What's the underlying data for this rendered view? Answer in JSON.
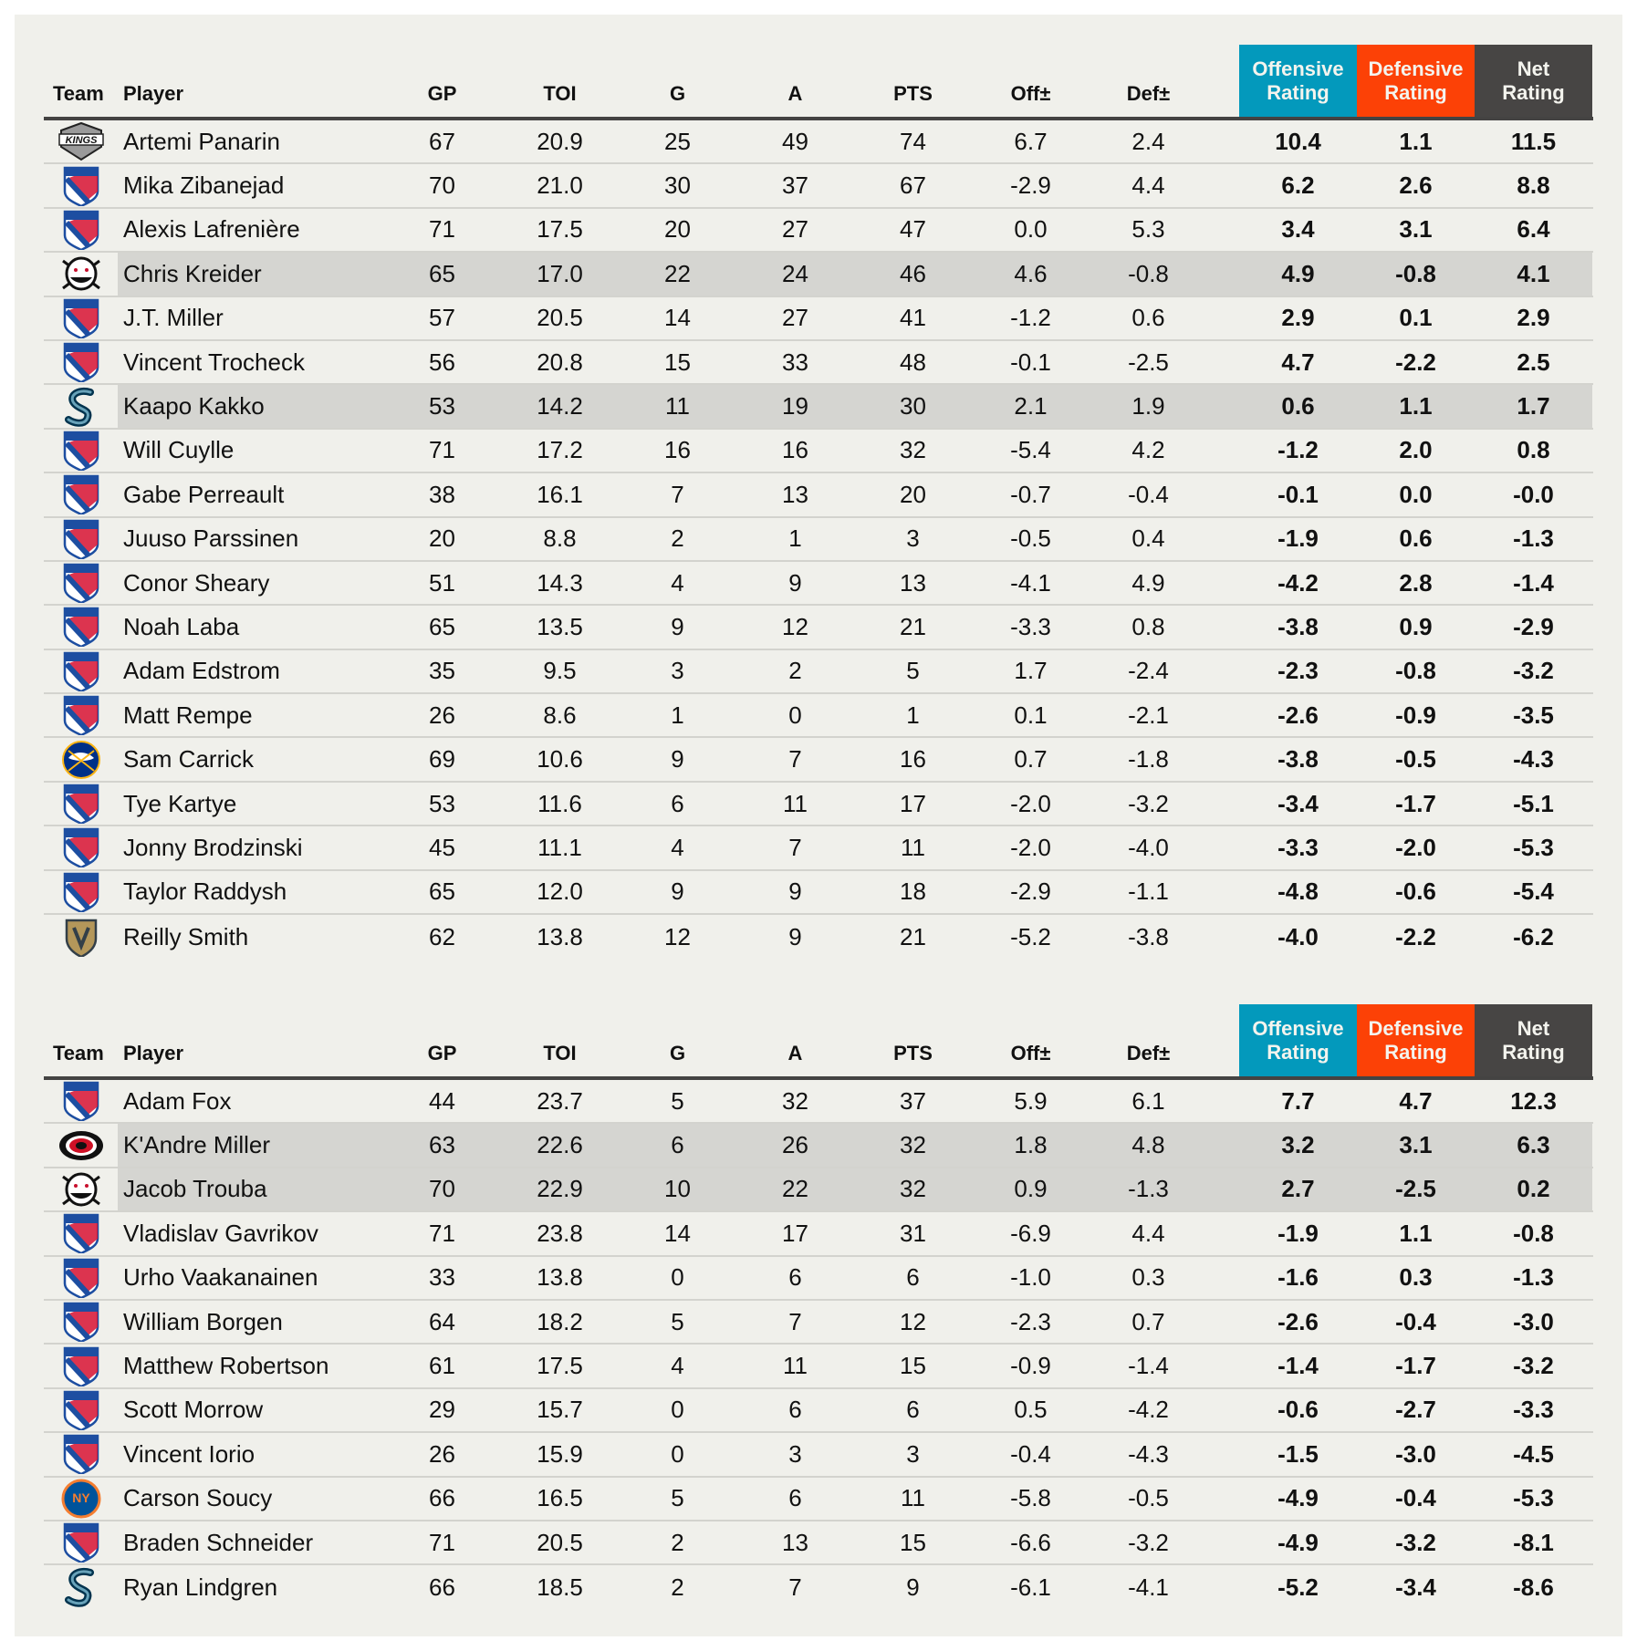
{
  "colors": {
    "offensive": "#0399bc",
    "defensive": "#fc4106",
    "net": "#474544",
    "highlight": "#d5d5d1",
    "background": "#f0f0eb"
  },
  "headers": {
    "team": "Team",
    "player": "Player",
    "gp": "GP",
    "toi": "TOI",
    "g": "G",
    "a": "A",
    "pts": "PTS",
    "off_pm": "Off±",
    "def_pm": "Def±",
    "off_rating": [
      "Offensive",
      "Rating"
    ],
    "def_rating": [
      "Defensive",
      "Rating"
    ],
    "net_rating": [
      "Net",
      "Rating"
    ]
  },
  "tables": [
    {
      "rows": [
        {
          "team": "kings",
          "player": "Artemi Panarin",
          "gp": "67",
          "toi": "20.9",
          "g": "25",
          "a": "49",
          "pts": "74",
          "off": "6.7",
          "def": "2.4",
          "offr": "10.4",
          "defr": "1.1",
          "net": "11.5",
          "highlight": false
        },
        {
          "team": "rangers",
          "player": "Mika Zibanejad",
          "gp": "70",
          "toi": "21.0",
          "g": "30",
          "a": "37",
          "pts": "67",
          "off": "-2.9",
          "def": "4.4",
          "offr": "6.2",
          "defr": "2.6",
          "net": "8.8",
          "highlight": false
        },
        {
          "team": "rangers",
          "player": "Alexis Lafrenière",
          "gp": "71",
          "toi": "17.5",
          "g": "20",
          "a": "27",
          "pts": "47",
          "off": "0.0",
          "def": "5.3",
          "offr": "3.4",
          "defr": "3.1",
          "net": "6.4",
          "highlight": false
        },
        {
          "team": "ducks",
          "player": "Chris Kreider",
          "gp": "65",
          "toi": "17.0",
          "g": "22",
          "a": "24",
          "pts": "46",
          "off": "4.6",
          "def": "-0.8",
          "offr": "4.9",
          "defr": "-0.8",
          "net": "4.1",
          "highlight": true
        },
        {
          "team": "rangers",
          "player": "J.T. Miller",
          "gp": "57",
          "toi": "20.5",
          "g": "14",
          "a": "27",
          "pts": "41",
          "off": "-1.2",
          "def": "0.6",
          "offr": "2.9",
          "defr": "0.1",
          "net": "2.9",
          "highlight": false
        },
        {
          "team": "rangers",
          "player": "Vincent Trocheck",
          "gp": "56",
          "toi": "20.8",
          "g": "15",
          "a": "33",
          "pts": "48",
          "off": "-0.1",
          "def": "-2.5",
          "offr": "4.7",
          "defr": "-2.2",
          "net": "2.5",
          "highlight": false
        },
        {
          "team": "kraken",
          "player": "Kaapo Kakko",
          "gp": "53",
          "toi": "14.2",
          "g": "11",
          "a": "19",
          "pts": "30",
          "off": "2.1",
          "def": "1.9",
          "offr": "0.6",
          "defr": "1.1",
          "net": "1.7",
          "highlight": true
        },
        {
          "team": "rangers",
          "player": "Will Cuylle",
          "gp": "71",
          "toi": "17.2",
          "g": "16",
          "a": "16",
          "pts": "32",
          "off": "-5.4",
          "def": "4.2",
          "offr": "-1.2",
          "defr": "2.0",
          "net": "0.8",
          "highlight": false
        },
        {
          "team": "rangers",
          "player": "Gabe Perreault",
          "gp": "38",
          "toi": "16.1",
          "g": "7",
          "a": "13",
          "pts": "20",
          "off": "-0.7",
          "def": "-0.4",
          "offr": "-0.1",
          "defr": "0.0",
          "net": "-0.0",
          "highlight": false
        },
        {
          "team": "rangers",
          "player": "Juuso Parssinen",
          "gp": "20",
          "toi": "8.8",
          "g": "2",
          "a": "1",
          "pts": "3",
          "off": "-0.5",
          "def": "0.4",
          "offr": "-1.9",
          "defr": "0.6",
          "net": "-1.3",
          "highlight": false
        },
        {
          "team": "rangers",
          "player": "Conor Sheary",
          "gp": "51",
          "toi": "14.3",
          "g": "4",
          "a": "9",
          "pts": "13",
          "off": "-4.1",
          "def": "4.9",
          "offr": "-4.2",
          "defr": "2.8",
          "net": "-1.4",
          "highlight": false
        },
        {
          "team": "rangers",
          "player": "Noah Laba",
          "gp": "65",
          "toi": "13.5",
          "g": "9",
          "a": "12",
          "pts": "21",
          "off": "-3.3",
          "def": "0.8",
          "offr": "-3.8",
          "defr": "0.9",
          "net": "-2.9",
          "highlight": false
        },
        {
          "team": "rangers",
          "player": "Adam Edstrom",
          "gp": "35",
          "toi": "9.5",
          "g": "3",
          "a": "2",
          "pts": "5",
          "off": "1.7",
          "def": "-2.4",
          "offr": "-2.3",
          "defr": "-0.8",
          "net": "-3.2",
          "highlight": false
        },
        {
          "team": "rangers",
          "player": "Matt Rempe",
          "gp": "26",
          "toi": "8.6",
          "g": "1",
          "a": "0",
          "pts": "1",
          "off": "0.1",
          "def": "-2.1",
          "offr": "-2.6",
          "defr": "-0.9",
          "net": "-3.5",
          "highlight": false
        },
        {
          "team": "sabres",
          "player": "Sam Carrick",
          "gp": "69",
          "toi": "10.6",
          "g": "9",
          "a": "7",
          "pts": "16",
          "off": "0.7",
          "def": "-1.8",
          "offr": "-3.8",
          "defr": "-0.5",
          "net": "-4.3",
          "highlight": false
        },
        {
          "team": "rangers",
          "player": "Tye Kartye",
          "gp": "53",
          "toi": "11.6",
          "g": "6",
          "a": "11",
          "pts": "17",
          "off": "-2.0",
          "def": "-3.2",
          "offr": "-3.4",
          "defr": "-1.7",
          "net": "-5.1",
          "highlight": false
        },
        {
          "team": "rangers",
          "player": "Jonny Brodzinski",
          "gp": "45",
          "toi": "11.1",
          "g": "4",
          "a": "7",
          "pts": "11",
          "off": "-2.0",
          "def": "-4.0",
          "offr": "-3.3",
          "defr": "-2.0",
          "net": "-5.3",
          "highlight": false
        },
        {
          "team": "rangers",
          "player": "Taylor Raddysh",
          "gp": "65",
          "toi": "12.0",
          "g": "9",
          "a": "9",
          "pts": "18",
          "off": "-2.9",
          "def": "-1.1",
          "offr": "-4.8",
          "defr": "-0.6",
          "net": "-5.4",
          "highlight": false
        },
        {
          "team": "vegas",
          "player": "Reilly Smith",
          "gp": "62",
          "toi": "13.8",
          "g": "12",
          "a": "9",
          "pts": "21",
          "off": "-5.2",
          "def": "-3.8",
          "offr": "-4.0",
          "defr": "-2.2",
          "net": "-6.2",
          "highlight": false
        }
      ]
    },
    {
      "rows": [
        {
          "team": "rangers",
          "player": "Adam Fox",
          "gp": "44",
          "toi": "23.7",
          "g": "5",
          "a": "32",
          "pts": "37",
          "off": "5.9",
          "def": "6.1",
          "offr": "7.7",
          "defr": "4.7",
          "net": "12.3",
          "highlight": false
        },
        {
          "team": "hurricanes",
          "player": "K'Andre Miller",
          "gp": "63",
          "toi": "22.6",
          "g": "6",
          "a": "26",
          "pts": "32",
          "off": "1.8",
          "def": "4.8",
          "offr": "3.2",
          "defr": "3.1",
          "net": "6.3",
          "highlight": true
        },
        {
          "team": "ducks",
          "player": "Jacob Trouba",
          "gp": "70",
          "toi": "22.9",
          "g": "10",
          "a": "22",
          "pts": "32",
          "off": "0.9",
          "def": "-1.3",
          "offr": "2.7",
          "defr": "-2.5",
          "net": "0.2",
          "highlight": true
        },
        {
          "team": "rangers",
          "player": "Vladislav Gavrikov",
          "gp": "71",
          "toi": "23.8",
          "g": "14",
          "a": "17",
          "pts": "31",
          "off": "-6.9",
          "def": "4.4",
          "offr": "-1.9",
          "defr": "1.1",
          "net": "-0.8",
          "highlight": false
        },
        {
          "team": "rangers",
          "player": "Urho Vaakanainen",
          "gp": "33",
          "toi": "13.8",
          "g": "0",
          "a": "6",
          "pts": "6",
          "off": "-1.0",
          "def": "0.3",
          "offr": "-1.6",
          "defr": "0.3",
          "net": "-1.3",
          "highlight": false
        },
        {
          "team": "rangers",
          "player": "William Borgen",
          "gp": "64",
          "toi": "18.2",
          "g": "5",
          "a": "7",
          "pts": "12",
          "off": "-2.3",
          "def": "0.7",
          "offr": "-2.6",
          "defr": "-0.4",
          "net": "-3.0",
          "highlight": false
        },
        {
          "team": "rangers",
          "player": "Matthew Robertson",
          "gp": "61",
          "toi": "17.5",
          "g": "4",
          "a": "11",
          "pts": "15",
          "off": "-0.9",
          "def": "-1.4",
          "offr": "-1.4",
          "defr": "-1.7",
          "net": "-3.2",
          "highlight": false
        },
        {
          "team": "rangers",
          "player": "Scott Morrow",
          "gp": "29",
          "toi": "15.7",
          "g": "0",
          "a": "6",
          "pts": "6",
          "off": "0.5",
          "def": "-4.2",
          "offr": "-0.6",
          "defr": "-2.7",
          "net": "-3.3",
          "highlight": false
        },
        {
          "team": "rangers",
          "player": "Vincent Iorio",
          "gp": "26",
          "toi": "15.9",
          "g": "0",
          "a": "3",
          "pts": "3",
          "off": "-0.4",
          "def": "-4.3",
          "offr": "-1.5",
          "defr": "-3.0",
          "net": "-4.5",
          "highlight": false
        },
        {
          "team": "islanders",
          "player": "Carson Soucy",
          "gp": "66",
          "toi": "16.5",
          "g": "5",
          "a": "6",
          "pts": "11",
          "off": "-5.8",
          "def": "-0.5",
          "offr": "-4.9",
          "defr": "-0.4",
          "net": "-5.3",
          "highlight": false
        },
        {
          "team": "rangers",
          "player": "Braden Schneider",
          "gp": "71",
          "toi": "20.5",
          "g": "2",
          "a": "13",
          "pts": "15",
          "off": "-6.6",
          "def": "-3.2",
          "offr": "-4.9",
          "defr": "-3.2",
          "net": "-8.1",
          "highlight": false
        },
        {
          "team": "kraken",
          "player": "Ryan Lindgren",
          "gp": "66",
          "toi": "18.5",
          "g": "2",
          "a": "7",
          "pts": "9",
          "off": "-6.1",
          "def": "-4.1",
          "offr": "-5.2",
          "defr": "-3.4",
          "net": "-8.6",
          "highlight": false
        }
      ]
    }
  ]
}
